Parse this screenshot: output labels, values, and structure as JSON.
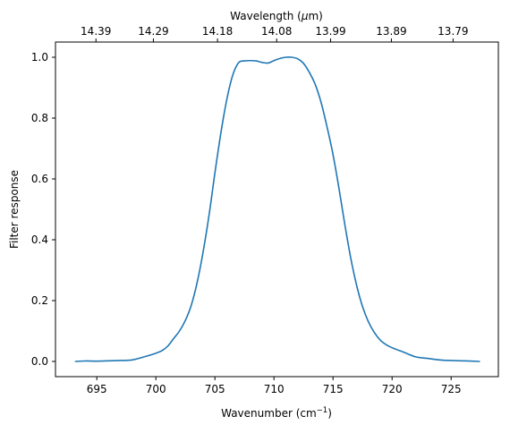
{
  "chart_data": {
    "type": "line",
    "title": "",
    "xlabel": "Wavenumber (cm",
    "xlabel_sup": "−1",
    "xlabel_end": ")",
    "ylabel": "Filter response",
    "top_xlabel": "Wavelength (",
    "top_xlabel_mu": "μ",
    "top_xlabel_end": "m)",
    "xlim": [
      691.5,
      729.0
    ],
    "ylim": [
      -0.05,
      1.05
    ],
    "grid": false,
    "legend": "none",
    "line_color": "#1f77b4",
    "x_ticks": [
      {
        "value": 695,
        "label": "695"
      },
      {
        "value": 700,
        "label": "700"
      },
      {
        "value": 705,
        "label": "705"
      },
      {
        "value": 710,
        "label": "710"
      },
      {
        "value": 715,
        "label": "715"
      },
      {
        "value": 720,
        "label": "720"
      },
      {
        "value": 725,
        "label": "725"
      }
    ],
    "y_ticks": [
      {
        "value": 0.0,
        "label": "0.0"
      },
      {
        "value": 0.2,
        "label": "0.2"
      },
      {
        "value": 0.4,
        "label": "0.4"
      },
      {
        "value": 0.6,
        "label": "0.6"
      },
      {
        "value": 0.8,
        "label": "0.8"
      },
      {
        "value": 1.0,
        "label": "1.0"
      }
    ],
    "top_ticks": [
      {
        "value": 14.39,
        "label": "14.39"
      },
      {
        "value": 14.29,
        "label": "14.29"
      },
      {
        "value": 14.18,
        "label": "14.18"
      },
      {
        "value": 14.08,
        "label": "14.08"
      },
      {
        "value": 13.99,
        "label": "13.99"
      },
      {
        "value": 13.89,
        "label": "13.89"
      },
      {
        "value": 13.79,
        "label": "13.79"
      }
    ],
    "series": [
      {
        "x": [
          693.2,
          694.0,
          695.0,
          696.0,
          697.0,
          698.0,
          699.0,
          700.0,
          700.5,
          701.0,
          701.5,
          702.0,
          702.5,
          703.0,
          703.5,
          704.0,
          704.5,
          705.0,
          705.5,
          706.0,
          706.5,
          707.0,
          707.5,
          708.0,
          708.5,
          709.0,
          709.5,
          710.0,
          710.5,
          711.0,
          711.5,
          712.0,
          712.5,
          713.0,
          713.5,
          714.0,
          714.5,
          715.0,
          715.5,
          716.0,
          716.5,
          717.0,
          717.5,
          718.0,
          718.5,
          719.0,
          719.5,
          720.0,
          721.0,
          722.0,
          723.0,
          724.0,
          725.0,
          726.0,
          727.4
        ],
        "y": [
          0.0,
          0.0015,
          0.001,
          0.002,
          0.003,
          0.005,
          0.015,
          0.027,
          0.035,
          0.05,
          0.075,
          0.1,
          0.135,
          0.185,
          0.26,
          0.36,
          0.48,
          0.62,
          0.75,
          0.86,
          0.94,
          0.982,
          0.988,
          0.989,
          0.988,
          0.983,
          0.981,
          0.989,
          0.996,
          1.0,
          1.0,
          0.995,
          0.98,
          0.95,
          0.91,
          0.85,
          0.77,
          0.68,
          0.57,
          0.45,
          0.34,
          0.25,
          0.18,
          0.13,
          0.095,
          0.07,
          0.055,
          0.045,
          0.03,
          0.015,
          0.01,
          0.005,
          0.003,
          0.002,
          0.0
        ]
      }
    ]
  }
}
